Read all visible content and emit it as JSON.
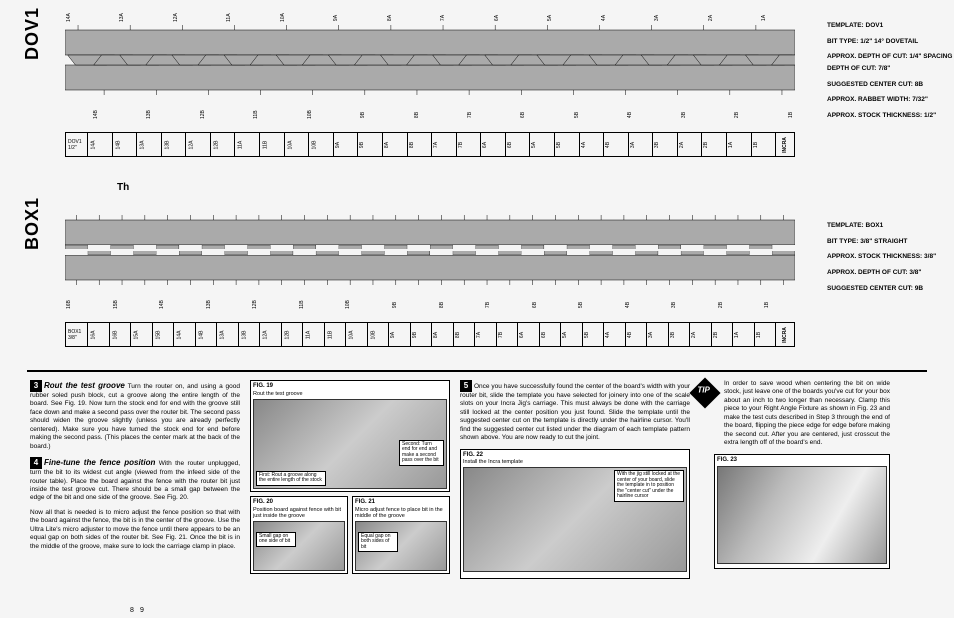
{
  "dov1": {
    "label": "DOV1",
    "specs": [
      "TEMPLATE: DOV1",
      "BIT TYPE: 1/2\" 14° DOVETAIL",
      "APPROX. DEPTH OF CUT: 1/4\"\nSPACING TO SET DEPTH OF CUT: 7/8\"",
      "SUGGESTED CENTER CUT: 8B",
      "APPROX. RABBET WIDTH: 7/32\"",
      "APPROX. STOCK THICKNESS: 1/2\""
    ],
    "top_ticks": [
      "14A",
      "",
      "13A",
      "",
      "12A",
      "",
      "11A",
      "",
      "10A",
      "",
      "9A",
      "",
      "8A",
      "",
      "7A",
      "",
      "6A",
      "",
      "5A",
      "",
      "4A",
      "",
      "3A",
      "",
      "2A",
      "",
      "1A",
      ""
    ],
    "bot_ticks": [
      "",
      "14B",
      "",
      "13B",
      "",
      "12B",
      "",
      "11B",
      "",
      "10B",
      "",
      "9B",
      "",
      "8B",
      "",
      "7B",
      "",
      "6B",
      "",
      "5B",
      "",
      "4B",
      "",
      "3B",
      "",
      "2B",
      "",
      "1B"
    ],
    "ruler_head": "DOV1\n1/2\"",
    "ruler_cells": [
      "14A",
      "14B",
      "13A",
      "13B",
      "12A",
      "12B",
      "11A",
      "11B",
      "10A",
      "10B",
      "9A",
      "9B",
      "8A",
      "8B",
      "7A",
      "7B",
      "6A",
      "6B",
      "5A",
      "5B",
      "4A",
      "4B",
      "3A",
      "3B",
      "2A",
      "2B",
      "1A",
      "1B"
    ],
    "teeth": 14
  },
  "box1": {
    "label": "BOX1",
    "specs": [
      "TEMPLATE: BOX1",
      "BIT TYPE: 3/8\" STRAIGHT",
      "APPROX. STOCK THICKNESS: 3/8\"",
      "APPROX. DEPTH OF CUT: 3/8\"",
      "SUGGESTED CENTER CUT: 9B"
    ],
    "top_ticks": [
      "",
      "",
      "",
      "",
      "",
      "",
      "",
      "",
      "",
      "",
      "",
      "",
      "",
      "",
      "",
      "",
      "",
      "",
      "",
      "",
      "",
      "",
      "",
      "",
      "",
      "",
      "",
      "",
      "",
      "",
      "",
      ""
    ],
    "bot_ticks": [
      "16B",
      "",
      "15B",
      "",
      "14B",
      "",
      "13B",
      "",
      "12B",
      "",
      "11B",
      "",
      "10B",
      "",
      "9B",
      "",
      "8B",
      "",
      "7B",
      "",
      "6B",
      "",
      "5B",
      "",
      "4B",
      "",
      "3B",
      "",
      "2B",
      "",
      "1B",
      ""
    ],
    "ruler_head": "BOX1\n3/8\"",
    "ruler_cells": [
      "16A",
      "16B",
      "15A",
      "15B",
      "14A",
      "14B",
      "13A",
      "13B",
      "12A",
      "12B",
      "11A",
      "11B",
      "10A",
      "10B",
      "9A",
      "9B",
      "8A",
      "8B",
      "7A",
      "7B",
      "6A",
      "6B",
      "5A",
      "5B",
      "4A",
      "4B",
      "3A",
      "3B",
      "2A",
      "2B",
      "1A",
      "1B"
    ],
    "teeth": 16
  },
  "incra": "INCRA",
  "th": "Th",
  "step3": {
    "num": "3",
    "title": "Rout the test groove",
    "text": "Turn the router on, and using a good rubber soled push block, cut a groove along the entire length of the board. See Fig. 19. Now turn the stock end for end with the groove still face down and make a second pass over the router bit. The second pass should widen the groove slightly (unless you are already perfectly centered). Make sure you have turned the stock end for end before making the second pass. (This places the center mark at the back of the board.)"
  },
  "step4": {
    "num": "4",
    "title": "Fine-tune the fence position",
    "text": "With the router unplugged, turn the bit to its widest cut angle (viewed from the infeed side of the router table). Place the board against the fence with the router bit just inside the test groove cut. There should be a small gap between the edge of the bit and one side of the groove. See Fig. 20.",
    "text2": "Now all that is needed is to micro adjust the fence position so that with the board against the fence, the bit is in the center of the groove. Use the Ultra Lite's micro adjuster to move the fence until there appears to be an equal gap on both sides of the router bit. See Fig. 21. Once the bit is in the middle of the groove, make sure to lock the carriage clamp in place."
  },
  "fig19": {
    "title": "FIG. 19",
    "sub": "Rout the test groove",
    "c1": "Second: Turn end for end and make a second pass over the bit",
    "c2": "First: Rout a groove along the entire length of the stock"
  },
  "fig20": {
    "title": "FIG. 20",
    "sub": "Position board against fence with bit just inside the groove",
    "c1": "Small gap on one side of bit"
  },
  "fig21": {
    "title": "FIG. 21",
    "sub": "Micro adjust fence to place bit in the middle of the groove",
    "c1": "Equal gap on both sides of bit"
  },
  "step5": {
    "num": "5",
    "text": "Once you have successfully found the center of the board's width with your router bit, slide the template you have selected for joinery into one of the scale slots on your Incra Jig's carriage. This must always be done with the carriage still locked at the center position you just found. Slide the template until the suggested center cut on the template is directly under the hairline cursor. You'll find the suggested center cut listed under the diagram of each template pattern shown above. You are now ready to cut the joint."
  },
  "fig22": {
    "title": "FIG. 22",
    "sub": "Install the Incra template",
    "c1": "With the jig still locked at the center of your board, slide the template in to position the \"center cut\" under the hairline cursor"
  },
  "tip": {
    "label": "TIP",
    "text": "In order to save wood when centering the bit on wide stock, just leave one of the boards you've cut for your box about an inch to two longer than necessary. Clamp this piece to your Right Angle Fixture as shown in Fig. 23 and make the test cuts described in Step 3 through the end of the board, flipping the piece edge for edge before making the second cut. After you are centered, just crosscut the extra length off of the board's end."
  },
  "fig23": {
    "title": "FIG. 23"
  },
  "pg_left": "8",
  "pg_right": "9"
}
